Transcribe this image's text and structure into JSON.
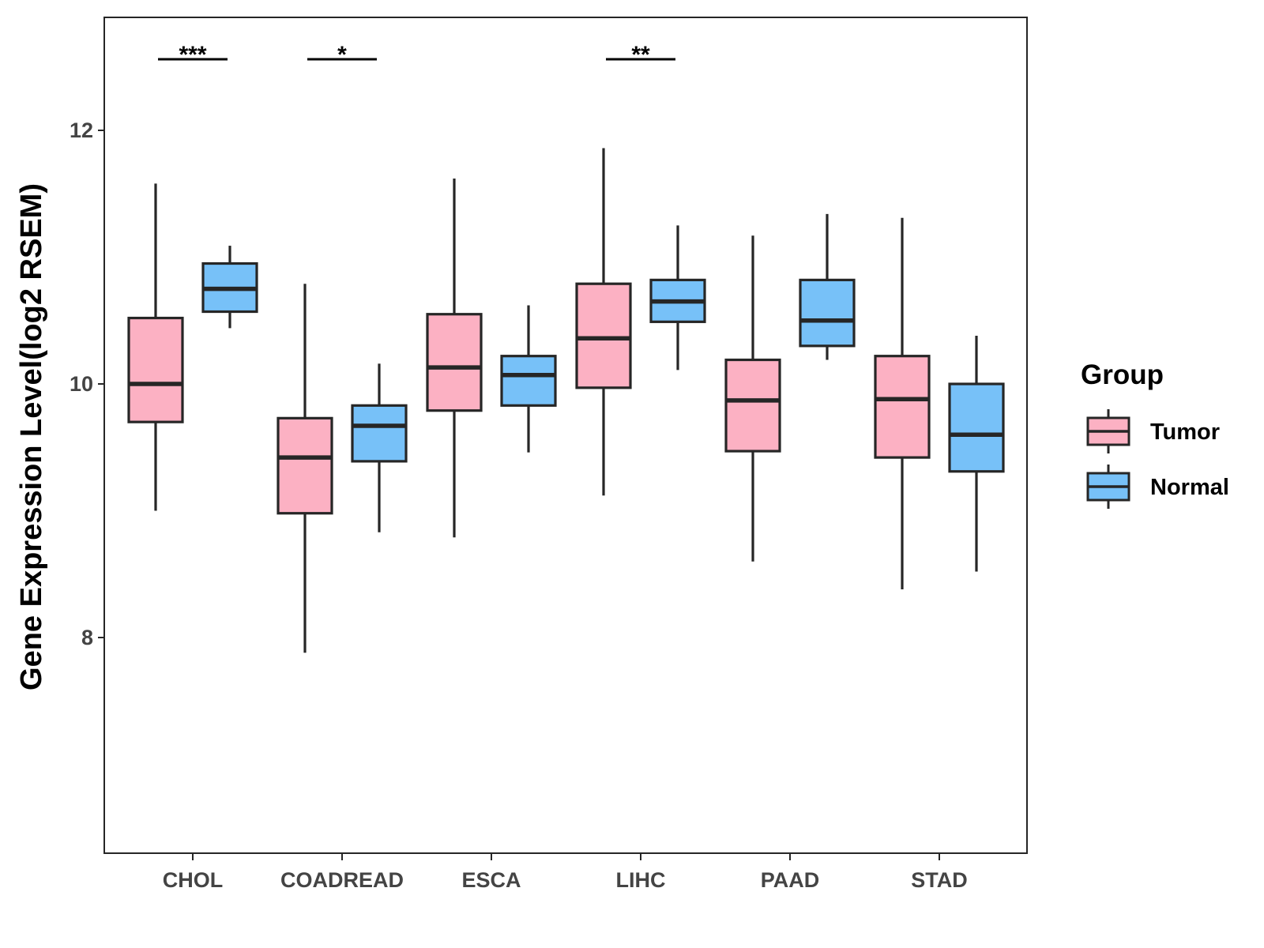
{
  "chart_data": {
    "type": "box",
    "xlabel": "",
    "ylabel": "Gene Expression Level(log2 RSEM)",
    "ylim": [
      6.3,
      12.9
    ],
    "yticks": [
      8,
      10,
      12
    ],
    "categories": [
      "CHOL",
      "COADREAD",
      "ESCA",
      "LIHC",
      "PAAD",
      "STAD"
    ],
    "grid": false,
    "legend": {
      "title": "Group",
      "placement": "right",
      "entries": [
        "Tumor",
        "Normal"
      ]
    },
    "colors": {
      "Tumor": "#fcb1c3",
      "Normal": "#77c1f8",
      "outline": "#262626"
    },
    "series": [
      {
        "name": "Tumor",
        "boxes": [
          {
            "category": "CHOL",
            "whisker_low": 9.0,
            "q1": 9.7,
            "median": 10.0,
            "q3": 10.52,
            "whisker_high": 11.58
          },
          {
            "category": "COADREAD",
            "whisker_low": 7.88,
            "q1": 8.98,
            "median": 9.42,
            "q3": 9.73,
            "whisker_high": 10.79
          },
          {
            "category": "ESCA",
            "whisker_low": 8.79,
            "q1": 9.79,
            "median": 10.13,
            "q3": 10.55,
            "whisker_high": 11.62
          },
          {
            "category": "LIHC",
            "whisker_low": 9.12,
            "q1": 9.97,
            "median": 10.36,
            "q3": 10.79,
            "whisker_high": 11.86
          },
          {
            "category": "PAAD",
            "whisker_low": 8.6,
            "q1": 9.47,
            "median": 9.87,
            "q3": 10.19,
            "whisker_high": 11.17
          },
          {
            "category": "STAD",
            "whisker_low": 8.38,
            "q1": 9.42,
            "median": 9.88,
            "q3": 10.22,
            "whisker_high": 11.31
          }
        ]
      },
      {
        "name": "Normal",
        "boxes": [
          {
            "category": "CHOL",
            "whisker_low": 10.44,
            "q1": 10.57,
            "median": 10.75,
            "q3": 10.95,
            "whisker_high": 11.09
          },
          {
            "category": "COADREAD",
            "whisker_low": 8.83,
            "q1": 9.39,
            "median": 9.67,
            "q3": 9.83,
            "whisker_high": 10.16
          },
          {
            "category": "ESCA",
            "whisker_low": 9.46,
            "q1": 9.83,
            "median": 10.07,
            "q3": 10.22,
            "whisker_high": 10.62
          },
          {
            "category": "LIHC",
            "whisker_low": 10.11,
            "q1": 10.49,
            "median": 10.65,
            "q3": 10.82,
            "whisker_high": 11.25
          },
          {
            "category": "PAAD",
            "whisker_low": 10.19,
            "q1": 10.3,
            "median": 10.5,
            "q3": 10.82,
            "whisker_high": 11.34
          },
          {
            "category": "STAD",
            "whisker_low": 8.52,
            "q1": 9.31,
            "median": 9.6,
            "q3": 10.0,
            "whisker_high": 10.38
          }
        ]
      }
    ],
    "annotations": [
      {
        "category": "CHOL",
        "label": "***"
      },
      {
        "category": "COADREAD",
        "label": "*"
      },
      {
        "category": "LIHC",
        "label": "**"
      }
    ]
  }
}
